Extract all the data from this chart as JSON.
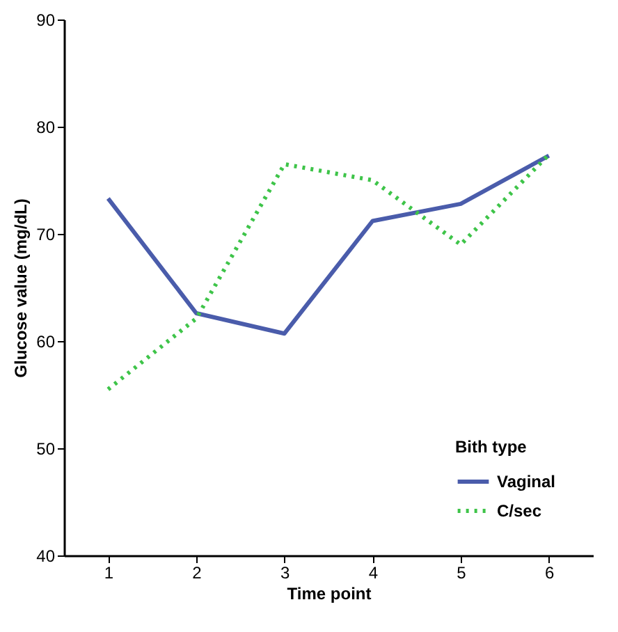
{
  "chart_data": {
    "type": "line",
    "xlabel": "Time point",
    "ylabel": "Glucose value (mg/dL)",
    "legend_title": "Bith type",
    "x": [
      1,
      2,
      3,
      4,
      5,
      6
    ],
    "series": [
      {
        "name": "Vaginal",
        "color": "#4a5cab",
        "line_style": "solid",
        "values": [
          73.3,
          62.6,
          60.7,
          71.2,
          72.8,
          77.3
        ]
      },
      {
        "name": "C/sec",
        "color": "#3ec449",
        "line_style": "dotted",
        "values": [
          55.5,
          62.1,
          76.5,
          75.0,
          69.0,
          77.4
        ]
      }
    ],
    "xlim": [
      0.5,
      6.5
    ],
    "xticks": [
      1,
      2,
      3,
      4,
      5,
      6
    ],
    "ylim": [
      40,
      90
    ],
    "yticks": [
      40,
      50,
      60,
      70,
      80,
      90
    ],
    "grid": false,
    "legend": "bottom right",
    "marker": "none"
  }
}
